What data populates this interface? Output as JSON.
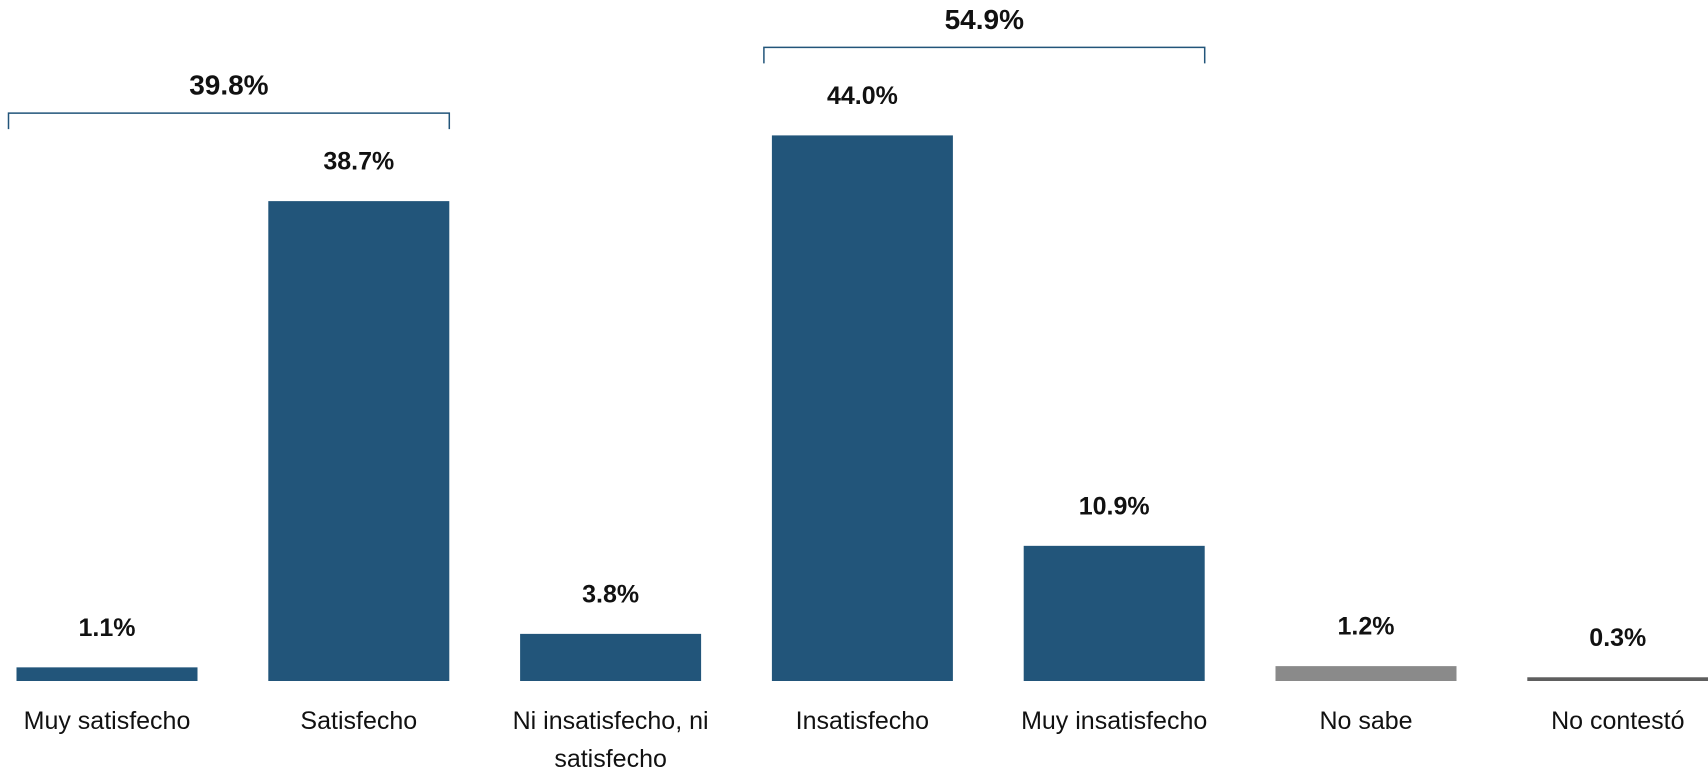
{
  "chart_data": {
    "type": "bar",
    "categories": [
      "Muy satisfecho",
      "Satisfecho",
      "Ni insatisfecho, ni satisfecho",
      "Insatisfecho",
      "Muy insatisfecho",
      "No sabe",
      "No contestó"
    ],
    "values": [
      1.1,
      38.7,
      3.8,
      44.0,
      10.9,
      1.2,
      0.3
    ],
    "value_labels": [
      "1.1%",
      "38.7%",
      "3.8%",
      "44.0%",
      "10.9%",
      "1.2%",
      "0.3%"
    ],
    "colors": [
      "#22557a",
      "#22557a",
      "#22557a",
      "#22557a",
      "#22557a",
      "#8a8a8a",
      "#5e5e5e"
    ],
    "annotations": [
      {
        "label": "39.8%",
        "value": 39.8,
        "span": [
          "Muy satisfecho",
          "Satisfecho"
        ]
      },
      {
        "label": "54.9%",
        "value": 54.9,
        "span": [
          "Insatisfecho",
          "Muy insatisfecho"
        ]
      }
    ]
  }
}
